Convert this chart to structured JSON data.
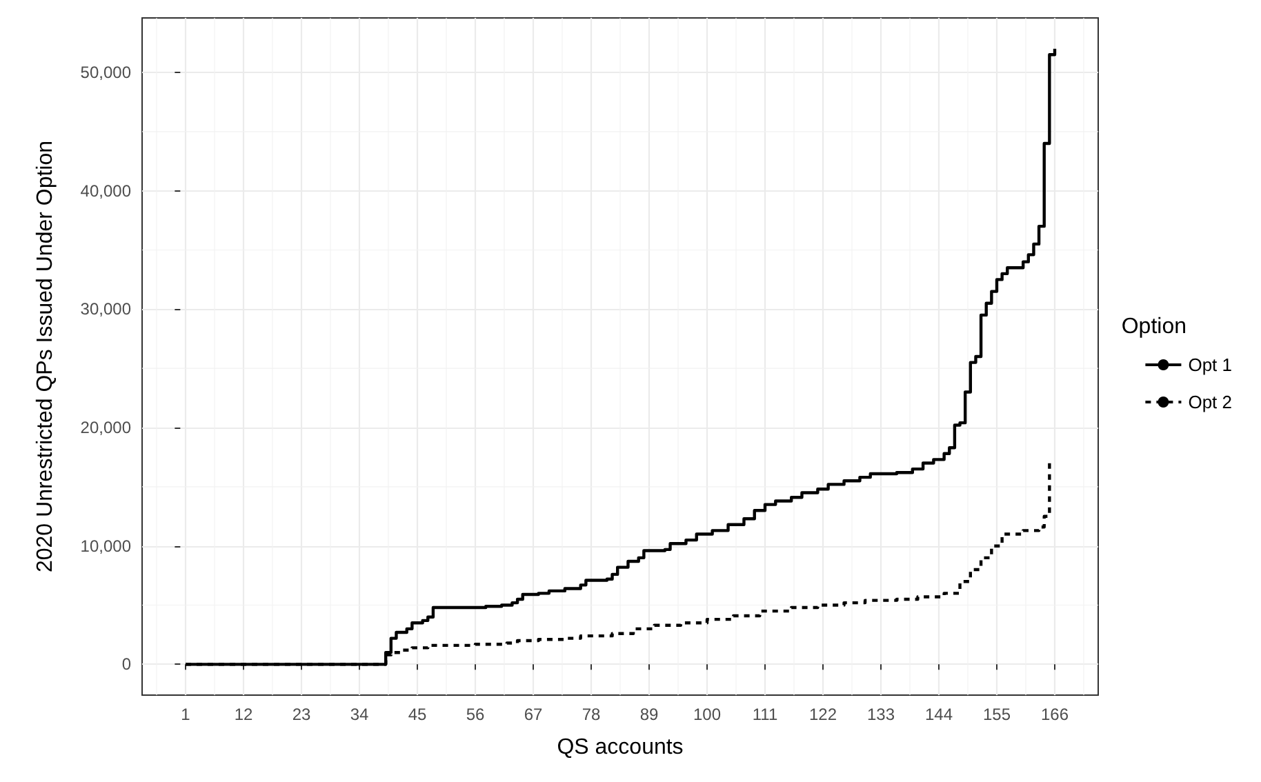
{
  "chart_data": {
    "type": "step",
    "xlabel": "QS accounts",
    "ylabel": "2020 Unrestricted QPs Issued Under Option",
    "legend_title": "Option",
    "legend": "right",
    "grid": true,
    "marker": "none",
    "xlim": [
      -7.25,
      174.25
    ],
    "xticks": [
      1,
      12,
      23,
      34,
      45,
      56,
      67,
      78,
      89,
      100,
      111,
      122,
      133,
      144,
      155,
      166
    ],
    "ylim": [
      -2600,
      54600
    ],
    "yticks": [
      {
        "value": 0,
        "label": "0"
      },
      {
        "value": 10000,
        "label": "10,000"
      },
      {
        "value": 20000,
        "label": "20,000"
      },
      {
        "value": 30000,
        "label": "30,000"
      },
      {
        "value": 40000,
        "label": "40,000"
      },
      {
        "value": 50000,
        "label": "50,000"
      }
    ],
    "series": [
      {
        "name": "Opt 1",
        "color": "#000000",
        "line_style": "solid",
        "x": [
          1,
          38,
          39,
          40,
          41,
          43,
          44,
          46,
          47,
          48,
          58,
          61,
          63,
          64,
          65,
          68,
          70,
          73,
          76,
          77,
          81,
          82,
          83,
          85,
          87,
          88,
          92,
          93,
          96,
          98,
          101,
          104,
          107,
          109,
          111,
          113,
          116,
          118,
          121,
          123,
          126,
          129,
          131,
          136,
          139,
          141,
          143,
          145,
          146,
          147,
          148,
          149,
          150,
          151,
          152,
          153,
          154,
          155,
          156,
          157,
          160,
          161,
          162,
          163,
          164,
          165,
          166
        ],
        "values": [
          0,
          0,
          1000,
          2200,
          2700,
          3000,
          3500,
          3700,
          4000,
          4800,
          4900,
          5000,
          5200,
          5500,
          5900,
          6000,
          6200,
          6400,
          6700,
          7100,
          7200,
          7600,
          8200,
          8700,
          9000,
          9600,
          9700,
          10200,
          10500,
          11000,
          11300,
          11800,
          12300,
          13000,
          13500,
          13800,
          14100,
          14500,
          14800,
          15200,
          15500,
          15800,
          16100,
          16200,
          16500,
          17000,
          17300,
          17800,
          18300,
          20200,
          20400,
          23000,
          25500,
          26000,
          29500,
          30500,
          31500,
          32500,
          33000,
          33500,
          34000,
          34600,
          35500,
          37000,
          44000,
          51500,
          52000
        ]
      },
      {
        "name": "Opt 2",
        "color": "#000000",
        "line_style": "dashed",
        "x": [
          1,
          38,
          39,
          40,
          42,
          44,
          47,
          56,
          62,
          64,
          68,
          73,
          76,
          82,
          86,
          90,
          95,
          100,
          105,
          110,
          116,
          121,
          126,
          130,
          136,
          140,
          145,
          148,
          150,
          152,
          154,
          156,
          160,
          163,
          164,
          165
        ],
        "values": [
          0,
          0,
          800,
          1000,
          1200,
          1400,
          1600,
          1700,
          1800,
          2000,
          2100,
          2200,
          2400,
          2600,
          3000,
          3300,
          3500,
          3800,
          4100,
          4500,
          4800,
          5000,
          5200,
          5400,
          5500,
          5700,
          6000,
          7000,
          8000,
          9000,
          10000,
          11000,
          11300,
          11600,
          12500,
          17000
        ]
      }
    ]
  }
}
